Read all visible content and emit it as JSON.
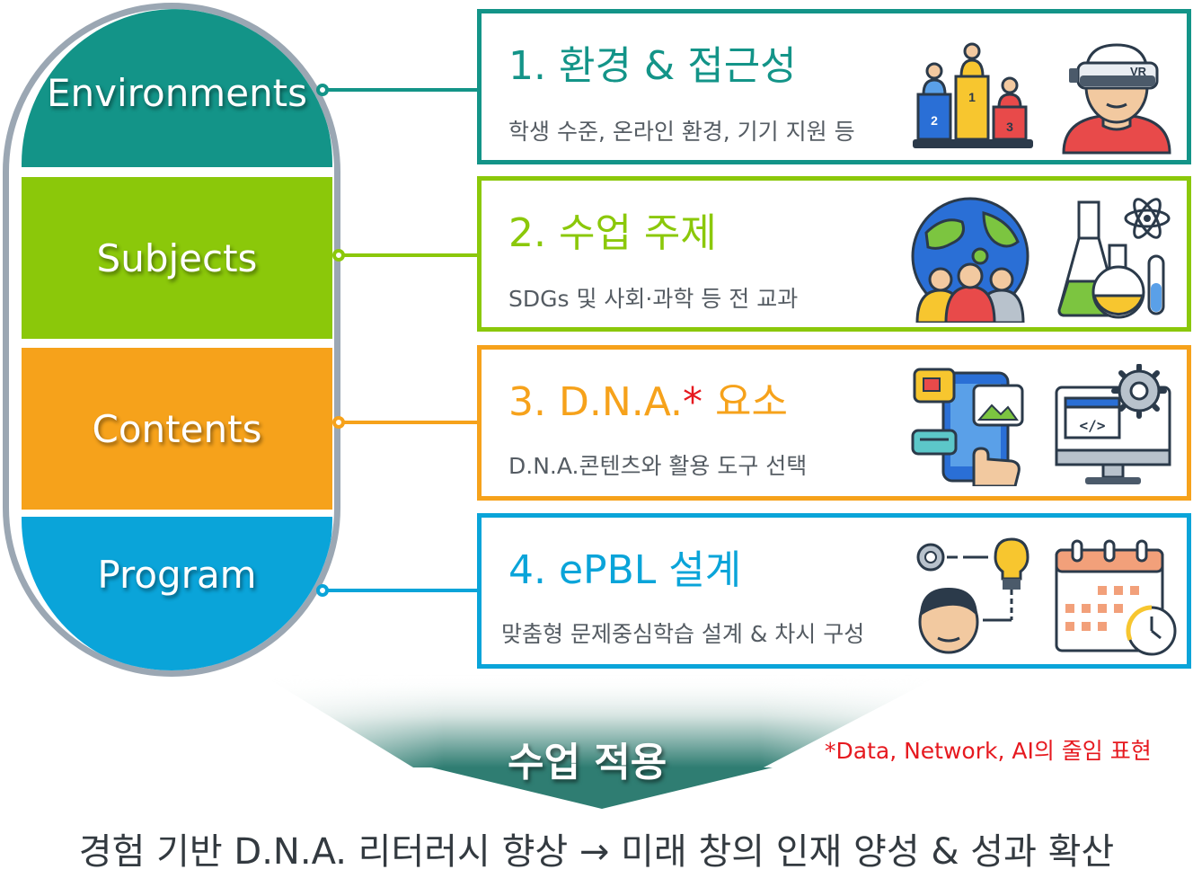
{
  "capsule": {
    "segments": [
      {
        "label": "Environments",
        "color": "#139488"
      },
      {
        "label": "Subjects",
        "color": "#8bc80a"
      },
      {
        "label": "Contents",
        "color": "#f6a21b"
      },
      {
        "label": "Program",
        "color": "#0aa4d9"
      }
    ]
  },
  "cards": [
    {
      "title": "1. 환경 & 접근성",
      "subtitle": "학생 수준, 온라인 환경, 기기 지원 등",
      "color": "#139488",
      "icons": [
        "podium-icon",
        "vr-headset-icon"
      ]
    },
    {
      "title": "2. 수업 주제",
      "subtitle": "SDGs 및 사회·과학 등 전 교과",
      "color": "#8bc80a",
      "icons": [
        "globe-people-icon",
        "science-flask-icon"
      ]
    },
    {
      "title_main": "3. D.N.A.",
      "title_star": "*",
      "title_tail": " 요소",
      "subtitle": "D.N.A.콘텐츠와 활용 도구 선택",
      "color": "#f6a21b",
      "icons": [
        "mobile-content-icon",
        "computer-code-icon"
      ]
    },
    {
      "title": "4. ePBL 설계",
      "subtitle": "맞춤형 문제중심학습 설계 & 차시 구성",
      "color": "#0aa4d9",
      "icons": [
        "thinking-person-icon",
        "calendar-clock-icon"
      ]
    }
  ],
  "arrow": {
    "label": "수업 적용"
  },
  "footnote": "*Data, Network, AI의 줄임 표현",
  "bottom_text": "경험 기반 D.N.A. 리터러시 향상 → 미래 창의 인재 양성 & 성과 확산"
}
